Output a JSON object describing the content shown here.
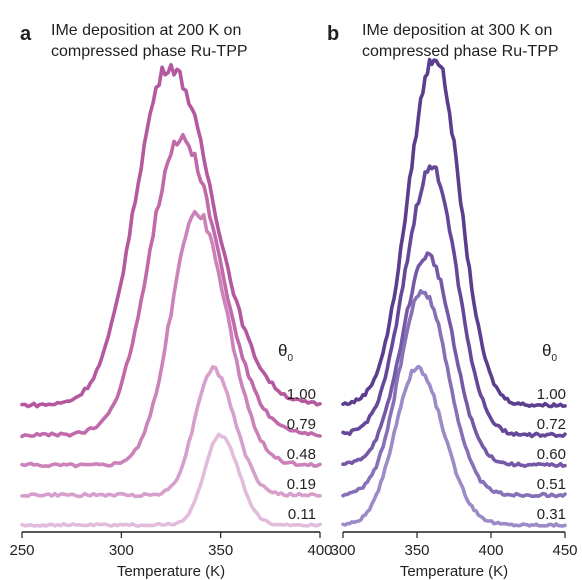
{
  "chart_data": [
    {
      "type": "line",
      "panel_label": "a",
      "title": [
        "IMe deposition at 200 K on",
        "compressed phase Ru-TPP"
      ],
      "xlabel": "Temperature (K)",
      "xlim": [
        250,
        400
      ],
      "xticks": [
        250,
        300,
        350,
        400
      ],
      "legend_title": "θ",
      "legend_title_subscript": "0",
      "series": [
        {
          "name": "1.00",
          "color": "#b4589f",
          "base": 0.0,
          "peak_x": 324,
          "amp": 1.13,
          "w_left": 17,
          "w_right": 22,
          "noise": 0.02
        },
        {
          "name": "0.79",
          "color": "#c06aab",
          "base": -0.1,
          "peak_x": 330,
          "amp": 0.99,
          "w_left": 16,
          "w_right": 19,
          "noise": 0.02
        },
        {
          "name": "0.48",
          "color": "#cc83b9",
          "base": -0.2,
          "peak_x": 338,
          "amp": 0.84,
          "w_left": 13,
          "w_right": 15,
          "noise": 0.018
        },
        {
          "name": "0.19",
          "color": "#d79fcb",
          "base": -0.3,
          "peak_x": 346,
          "amp": 0.42,
          "w_left": 9,
          "w_right": 11,
          "noise": 0.016
        },
        {
          "name": "0.11",
          "color": "#e2bcdc",
          "base": -0.4,
          "peak_x": 350,
          "amp": 0.3,
          "w_left": 8,
          "w_right": 9,
          "noise": 0.014
        }
      ]
    },
    {
      "type": "line",
      "panel_label": "b",
      "title": [
        "IMe deposition at 300 K on",
        "compressed phase Ru-TPP"
      ],
      "xlabel": "Temperature (K)",
      "xlim": [
        300,
        450
      ],
      "xticks": [
        300,
        350,
        400,
        450
      ],
      "legend_title": "θ",
      "legend_title_subscript": "0",
      "series": [
        {
          "name": "1.00",
          "color": "#5b3f8e",
          "base": 0.0,
          "peak_x": 362,
          "amp": 1.16,
          "w_left": 18,
          "w_right": 17,
          "noise": 0.018
        },
        {
          "name": "0.72",
          "color": "#66489a",
          "base": -0.1,
          "peak_x": 360,
          "amp": 0.89,
          "w_left": 18,
          "w_right": 17,
          "noise": 0.018
        },
        {
          "name": "0.60",
          "color": "#7559a7",
          "base": -0.2,
          "peak_x": 357,
          "amp": 0.7,
          "w_left": 17,
          "w_right": 17,
          "noise": 0.016
        },
        {
          "name": "0.51",
          "color": "#8670b6",
          "base": -0.3,
          "peak_x": 354,
          "amp": 0.68,
          "w_left": 16,
          "w_right": 17,
          "noise": 0.016
        },
        {
          "name": "0.31",
          "color": "#9c8bc6",
          "base": -0.4,
          "peak_x": 350,
          "amp": 0.52,
          "w_left": 15,
          "w_right": 18,
          "noise": 0.014
        }
      ]
    }
  ]
}
